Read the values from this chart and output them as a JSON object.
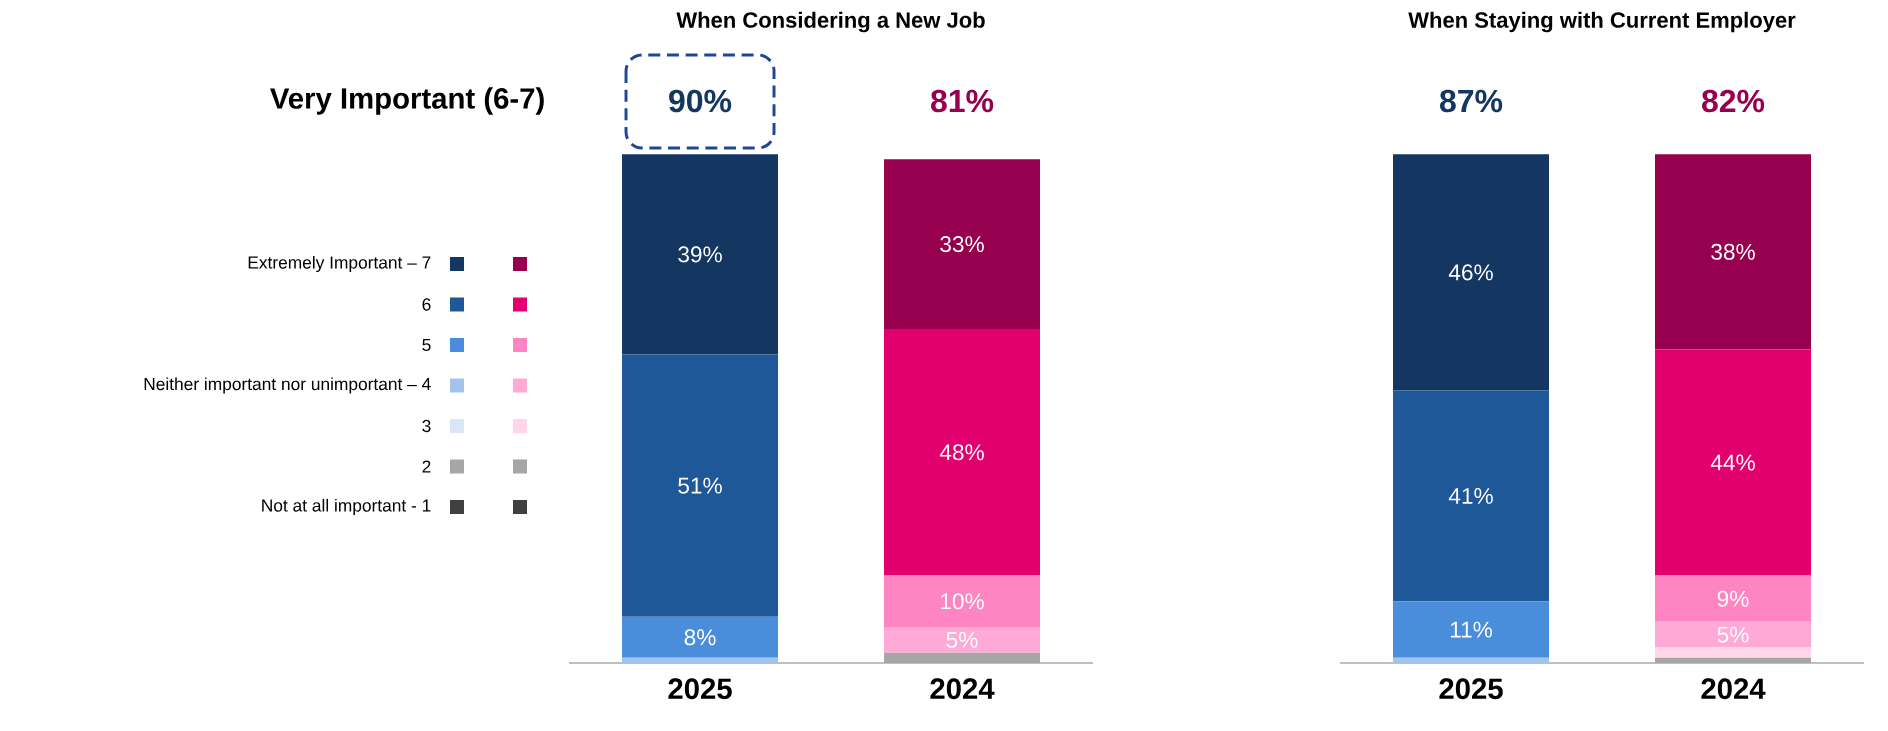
{
  "chart_data": [
    {
      "type": "bar",
      "stacked": true,
      "title": "When Considering a New Job",
      "categories": [
        "2025",
        "2024"
      ],
      "legend": "left",
      "grid": false,
      "annotations": [
        "Very Important (6-7)",
        "90%",
        "81%"
      ],
      "series": [
        {
          "name": "Not at all important - 1",
          "colors": [
            "#404040",
            "#404040"
          ],
          "values": [
            0,
            0
          ]
        },
        {
          "name": "2",
          "colors": [
            "#a6a6a6",
            "#a6a6a6"
          ],
          "values": [
            0,
            2
          ]
        },
        {
          "name": "3",
          "colors": [
            "#dae6f6",
            "#ffd6ea"
          ],
          "values": [
            0,
            0
          ]
        },
        {
          "name": "Neither important nor unimportant – 4",
          "colors": [
            "#a2c4ea",
            "#ffaad6"
          ],
          "values": [
            1,
            5
          ],
          "value_labels": [
            null,
            "5%"
          ]
        },
        {
          "name": "5",
          "colors": [
            "#4a8edb",
            "#ff85c2"
          ],
          "values": [
            8,
            10
          ],
          "value_labels": [
            "8%",
            "10%"
          ]
        },
        {
          "name": "6",
          "colors": [
            "#1f5898",
            "#e2006f"
          ],
          "values": [
            51,
            48
          ],
          "value_labels": [
            "51%",
            "48%"
          ]
        },
        {
          "name": "Extremely Important – 7",
          "colors": [
            "#133760",
            "#97004e"
          ],
          "values": [
            39,
            33
          ],
          "value_labels": [
            "39%",
            "33%"
          ]
        }
      ]
    },
    {
      "type": "bar",
      "stacked": true,
      "title": "When Staying with Current Employer",
      "categories": [
        "2025",
        "2024"
      ],
      "grid": false,
      "annotations": [
        "87%",
        "82%"
      ],
      "series": [
        {
          "colors": [
            "#404040",
            "#404040"
          ],
          "values": [
            0,
            0
          ]
        },
        {
          "colors": [
            "#a6a6a6",
            "#a6a6a6"
          ],
          "values": [
            0,
            1
          ]
        },
        {
          "colors": [
            "#dae6f6",
            "#ffd6ea"
          ],
          "values": [
            0,
            2
          ]
        },
        {
          "colors": [
            "#a2c4ea",
            "#ffaad6"
          ],
          "values": [
            1,
            5
          ],
          "value_labels": [
            null,
            "5%"
          ]
        },
        {
          "colors": [
            "#4a8edb",
            "#ff85c2"
          ],
          "values": [
            11,
            9
          ],
          "value_labels": [
            "11%",
            "9%"
          ]
        },
        {
          "colors": [
            "#1f5898",
            "#e2006f"
          ],
          "values": [
            41,
            44
          ],
          "value_labels": [
            "41%",
            "44%"
          ]
        },
        {
          "colors": [
            "#133760",
            "#97004e"
          ],
          "values": [
            46,
            38
          ],
          "value_labels": [
            "46%",
            "38%"
          ]
        }
      ]
    }
  ]
}
